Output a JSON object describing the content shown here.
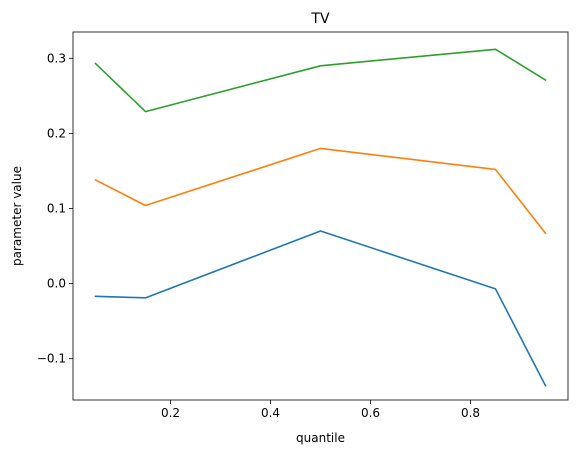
{
  "chart_data": {
    "type": "line",
    "title": "TV",
    "xlabel": "quantile",
    "ylabel": "parameter value",
    "xlim": [
      0.005,
      0.995
    ],
    "ylim": [
      -0.155,
      0.335
    ],
    "xticks": [
      0.2,
      0.4,
      0.6,
      0.8
    ],
    "xtick_labels": [
      "0.2",
      "0.4",
      "0.6",
      "0.8"
    ],
    "yticks": [
      -0.1,
      0.0,
      0.1,
      0.2,
      0.3
    ],
    "ytick_labels": [
      "−0.1",
      "0.0",
      "0.1",
      "0.2",
      "0.3"
    ],
    "grid": false,
    "x": [
      0.05,
      0.15,
      0.5,
      0.85,
      0.95
    ],
    "series": [
      {
        "color": "#1f77b4",
        "values": [
          -0.017,
          -0.019,
          0.07,
          -0.007,
          -0.136
        ]
      },
      {
        "color": "#ff7f0e",
        "values": [
          0.138,
          0.104,
          0.18,
          0.152,
          0.067
        ]
      },
      {
        "color": "#2ca02c",
        "values": [
          0.293,
          0.229,
          0.29,
          0.312,
          0.271
        ]
      }
    ]
  }
}
